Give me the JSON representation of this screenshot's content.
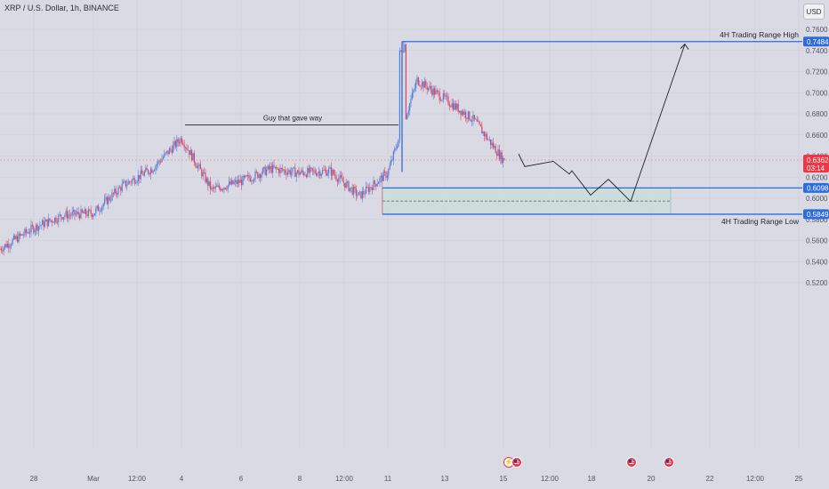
{
  "symbol_title": "XRP / U.S. Dollar, 1h, BINANCE",
  "currency_button": "USD",
  "price_scale": {
    "ticks": [
      "0.7600",
      "0.7400",
      "0.7200",
      "0.7000",
      "0.6800",
      "0.6600",
      "0.6400",
      "0.6200",
      "0.6000",
      "0.5800",
      "0.5600",
      "0.5400",
      "0.5200"
    ]
  },
  "time_axis": {
    "ticks": [
      "28",
      "Mar",
      "12:00",
      "4",
      "6",
      "8",
      "12:00",
      "11",
      "13",
      "15",
      "12:00",
      "18",
      "20",
      "22",
      "12:00",
      "25"
    ]
  },
  "price_labels": {
    "high": "0.7484",
    "current": "0.6362",
    "countdown": "03:14",
    "zone_top": "0.6098",
    "low": "0.5849"
  },
  "annotations": {
    "high_label": "4H Trading Range High",
    "low_label": "4H Trading Range Low",
    "guy_label": "Guy that gave way"
  },
  "colors": {
    "bull": "#4f7fdc",
    "bear": "#e0455e",
    "level_line": "#2d6be0",
    "zone_fill": "#c9ddd9",
    "current_price": "#f23645",
    "background": "#d9dae3"
  },
  "chart_data": {
    "type": "candlestick",
    "title": "XRP / U.S. Dollar, 1h, BINANCE",
    "y_axis": {
      "min": 0.51,
      "max": 0.77,
      "scale": "linear",
      "position": "right"
    },
    "x_axis": {
      "labels": [
        "28",
        "Mar",
        "12:00",
        "4",
        "6",
        "8",
        "12:00",
        "11",
        "13",
        "15",
        "12:00",
        "18",
        "20",
        "22",
        "12:00",
        "25"
      ]
    },
    "price_path": [
      {
        "x": "27 Feb",
        "close": 0.548
      },
      {
        "x": "28 Feb",
        "close": 0.572
      },
      {
        "x": "29 Feb",
        "close": 0.584
      },
      {
        "x": "1 Mar",
        "close": 0.586
      },
      {
        "x": "2 Mar",
        "close": 0.612
      },
      {
        "x": "3 Mar",
        "close": 0.628
      },
      {
        "x": "4 Mar",
        "close": 0.657
      },
      {
        "x": "5 Mar",
        "close": 0.608
      },
      {
        "x": "6 Mar",
        "close": 0.616
      },
      {
        "x": "7 Mar",
        "close": 0.628
      },
      {
        "x": "8 Mar",
        "close": 0.624
      },
      {
        "x": "9 Mar",
        "close": 0.626
      },
      {
        "x": "10 Mar",
        "close": 0.602
      },
      {
        "x": "11 Mar",
        "close": 0.624
      },
      {
        "x": "12 Mar",
        "close": 0.712
      },
      {
        "x": "13 Mar",
        "close": 0.694
      },
      {
        "x": "14 Mar",
        "close": 0.674
      },
      {
        "x": "15 Mar",
        "close": 0.636
      }
    ],
    "extremes": {
      "high": 0.7484,
      "low": 0.5849,
      "last": 0.6362
    },
    "levels": [
      {
        "name": "4H Trading Range High",
        "value": 0.7484
      },
      {
        "name": "4H Trading Range Low",
        "value": 0.5849
      },
      {
        "name": "zone top",
        "value": 0.6098
      },
      {
        "name": "Guy that gave way",
        "value": 0.6695
      }
    ],
    "projected_path": [
      {
        "x": "15 Mar",
        "y": 0.642
      },
      {
        "x": "15 Mar",
        "y": 0.63
      },
      {
        "x": "16 Mar",
        "y": 0.635
      },
      {
        "x": "17 Mar",
        "y": 0.623
      },
      {
        "x": "17 Mar",
        "y": 0.626
      },
      {
        "x": "18 Mar",
        "y": 0.603
      },
      {
        "x": "18 Mar",
        "y": 0.618
      },
      {
        "x": "19 Mar",
        "y": 0.597
      },
      {
        "x": "21 Mar",
        "y": 0.746
      }
    ]
  }
}
